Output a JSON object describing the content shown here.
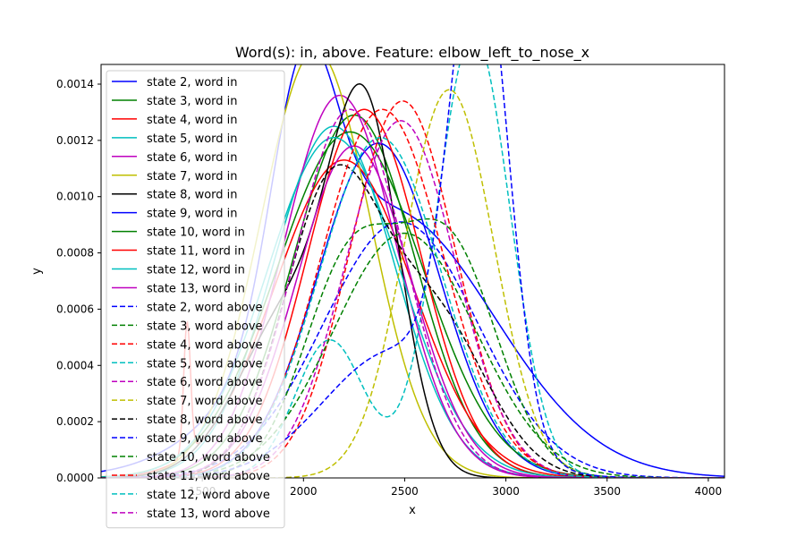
{
  "chart_data": {
    "type": "line",
    "title": "Word(s): in, above. Feature: elbow_left_to_nose_x",
    "xlabel": "x",
    "ylabel": "y",
    "xlim": [
      1000,
      4080
    ],
    "ylim": [
      0,
      0.00147
    ],
    "xticks": [
      1500,
      2000,
      2500,
      3000,
      3500,
      4000
    ],
    "yticks": [
      0.0,
      0.0002,
      0.0004,
      0.0006,
      0.0008,
      0.001,
      0.0012,
      0.0014
    ],
    "ytick_labels": [
      "0.0000",
      "0.0002",
      "0.0004",
      "0.0006",
      "0.0008",
      "0.0010",
      "0.0012",
      "0.0014"
    ],
    "legend_position": "upper-left",
    "series": [
      {
        "name": "state 2, word in",
        "color": "#0000ff",
        "dash": "solid",
        "components": [
          {
            "m": 2000,
            "s": 160,
            "a": 0.00085
          },
          {
            "m": 2420,
            "s": 520,
            "a": 0.00095
          }
        ]
      },
      {
        "name": "state 3, word in",
        "color": "#008000",
        "dash": "solid",
        "components": [
          {
            "m": 2250,
            "s": 300,
            "a": 0.00129
          }
        ]
      },
      {
        "name": "state 4, word in",
        "color": "#ff0000",
        "dash": "solid",
        "components": [
          {
            "m": 2200,
            "s": 340,
            "a": 0.00113
          },
          {
            "m": 1425,
            "s": 17,
            "a": 0.00047
          }
        ]
      },
      {
        "name": "state 5, word in",
        "color": "#00bfbf",
        "dash": "solid",
        "components": [
          {
            "m": 2150,
            "s": 300,
            "a": 0.00125
          }
        ]
      },
      {
        "name": "state 6, word in",
        "color": "#bf00bf",
        "dash": "solid",
        "components": [
          {
            "m": 2180,
            "s": 280,
            "a": 0.00136
          }
        ]
      },
      {
        "name": "state 7, word in",
        "color": "#bfbf00",
        "dash": "solid",
        "components": [
          {
            "m": 2060,
            "s": 270,
            "a": 0.00152
          }
        ]
      },
      {
        "name": "state 8, word in",
        "color": "#000000",
        "dash": "solid",
        "components": [
          {
            "m": 2310,
            "s": 170,
            "a": 0.00115
          },
          {
            "m": 1950,
            "s": 260,
            "a": 0.0006
          }
        ]
      },
      {
        "name": "state 9, word in",
        "color": "#0000ff",
        "dash": "solid",
        "components": [
          {
            "m": 2370,
            "s": 300,
            "a": 0.00119
          }
        ]
      },
      {
        "name": "state 10, word in",
        "color": "#008000",
        "dash": "solid",
        "components": [
          {
            "m": 2230,
            "s": 360,
            "a": 0.00123
          }
        ]
      },
      {
        "name": "state 11, word in",
        "color": "#ff0000",
        "dash": "solid",
        "components": [
          {
            "m": 2300,
            "s": 280,
            "a": 0.00131
          }
        ]
      },
      {
        "name": "state 12, word in",
        "color": "#00bfbf",
        "dash": "solid",
        "components": [
          {
            "m": 2150,
            "s": 330,
            "a": 0.00121
          }
        ]
      },
      {
        "name": "state 13, word in",
        "color": "#bf00bf",
        "dash": "solid",
        "components": [
          {
            "m": 2250,
            "s": 280,
            "a": 0.00118
          }
        ]
      },
      {
        "name": "state 2, word above",
        "color": "#0000ff",
        "dash": "dashed",
        "components": [
          {
            "m": 2480,
            "s": 380,
            "a": 0.00091
          }
        ]
      },
      {
        "name": "state 3, word above",
        "color": "#008000",
        "dash": "dashed",
        "components": [
          {
            "m": 2230,
            "s": 230,
            "a": 0.00075
          },
          {
            "m": 2720,
            "s": 240,
            "a": 0.00081
          }
        ]
      },
      {
        "name": "state 4, word above",
        "color": "#ff0000",
        "dash": "dashed",
        "components": [
          {
            "m": 2490,
            "s": 260,
            "a": 0.00134
          }
        ]
      },
      {
        "name": "state 5, word above",
        "color": "#00bfbf",
        "dash": "dashed",
        "components": [
          {
            "m": 2130,
            "s": 170,
            "a": 0.00049
          },
          {
            "m": 2840,
            "s": 180,
            "a": 0.00158
          }
        ]
      },
      {
        "name": "state 6, word above",
        "color": "#bf00bf",
        "dash": "dashed",
        "components": [
          {
            "m": 2480,
            "s": 270,
            "a": 0.00127
          }
        ]
      },
      {
        "name": "state 7, word above",
        "color": "#bfbf00",
        "dash": "dashed",
        "components": [
          {
            "m": 2720,
            "s": 220,
            "a": 0.00138
          }
        ]
      },
      {
        "name": "state 8, word above",
        "color": "#000000",
        "dash": "dashed",
        "components": [
          {
            "m": 2140,
            "s": 240,
            "a": 0.00102
          },
          {
            "m": 2650,
            "s": 260,
            "a": 0.00055
          }
        ]
      },
      {
        "name": "state 9, word above",
        "color": "#0000ff",
        "dash": "dashed",
        "components": [
          {
            "m": 2870,
            "s": 140,
            "a": 0.00175
          },
          {
            "m": 2450,
            "s": 350,
            "a": 0.00045
          }
        ]
      },
      {
        "name": "state 10, word above",
        "color": "#008000",
        "dash": "dashed",
        "components": [
          {
            "m": 2500,
            "s": 350,
            "a": 0.00087
          }
        ]
      },
      {
        "name": "state 11, word above",
        "color": "#ff0000",
        "dash": "dashed",
        "components": [
          {
            "m": 2390,
            "s": 300,
            "a": 0.00131
          }
        ]
      },
      {
        "name": "state 12, word above",
        "color": "#00bfbf",
        "dash": "dashed",
        "components": [
          {
            "m": 2380,
            "s": 300,
            "a": 0.00121
          }
        ]
      },
      {
        "name": "state 13, word above",
        "color": "#bf00bf",
        "dash": "dashed",
        "components": [
          {
            "m": 2230,
            "s": 270,
            "a": 0.00131
          }
        ]
      }
    ]
  }
}
